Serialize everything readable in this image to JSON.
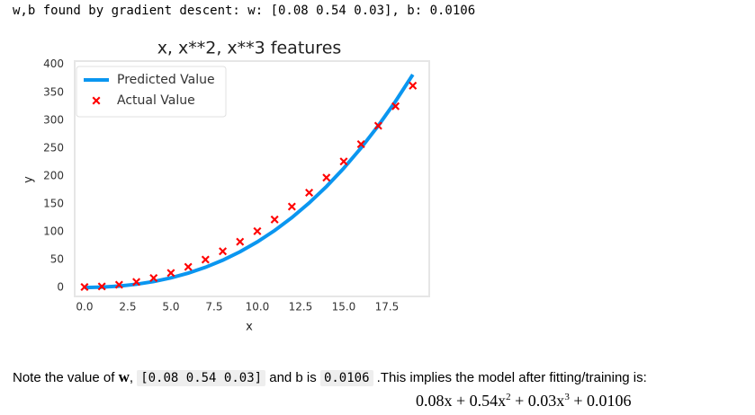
{
  "output_text": "w,b found by gradient descent: w: [0.08 0.54 0.03], b: 0.0106",
  "chart_data": {
    "type": "line",
    "title": "x, x**2, x**3 features",
    "x_label": "x",
    "y_label": "y",
    "x": [
      0,
      1,
      2,
      3,
      4,
      5,
      6,
      7,
      8,
      9,
      10,
      11,
      12,
      13,
      14,
      15,
      16,
      17,
      18,
      19
    ],
    "series": [
      {
        "name": "Predicted Value",
        "type": "line",
        "color": "#0a96f0",
        "values": [
          0,
          0.65,
          2.54,
          5.83,
          10.69,
          17.28,
          25.75,
          36.28,
          49.02,
          64.14,
          81.8,
          102.16,
          125.38,
          151.62,
          181.05,
          213.8,
          250.1,
          290.1,
          333.9,
          381.7
        ]
      },
      {
        "name": "Actual Value",
        "type": "scatter",
        "color": "#ff0000",
        "values": [
          1,
          2,
          5,
          10,
          17,
          26,
          37,
          50,
          65,
          82,
          101,
          122,
          145,
          170,
          197,
          226,
          257,
          290,
          325,
          362
        ]
      }
    ],
    "xlim": [
      -0.57,
      19.95
    ],
    "ylim": [
      -16,
      406
    ],
    "xticks": [
      {
        "value": 0,
        "label": "0.0"
      },
      {
        "value": 2.5,
        "label": "2.5"
      },
      {
        "value": 5,
        "label": "5.0"
      },
      {
        "value": 7.5,
        "label": "7.5"
      },
      {
        "value": 10,
        "label": "10.0"
      },
      {
        "value": 12.5,
        "label": "12.5"
      },
      {
        "value": 15,
        "label": "15.0"
      },
      {
        "value": 17.5,
        "label": "17.5"
      }
    ],
    "yticks": [
      0,
      50,
      100,
      150,
      200,
      250,
      300,
      350,
      400
    ],
    "grid": false,
    "legend": "upper left"
  },
  "note": {
    "prefix": "Note the value of ",
    "w": "w",
    "comma": ", ",
    "w_value": "[0.08 0.54 0.03]",
    "mid": " and b is ",
    "b_value": "0.0106",
    "suffix": " .This implies the model after fitting/training is:"
  },
  "formula": [
    "0.08x + 0.54x",
    "2",
    " + 0.03x",
    "3",
    " + 0.0106"
  ]
}
